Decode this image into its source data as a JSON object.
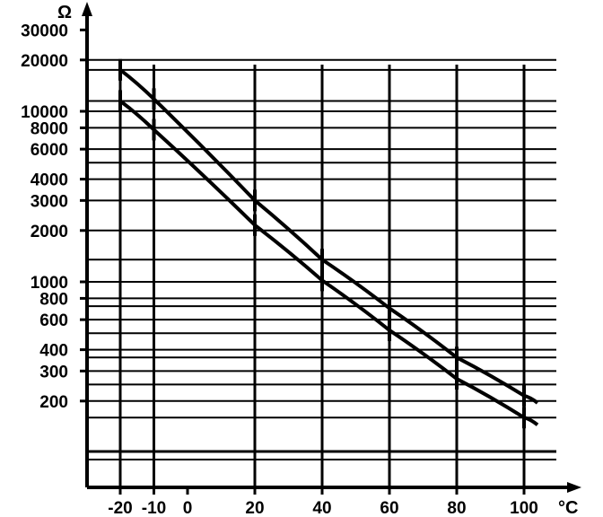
{
  "chart_data": {
    "type": "line",
    "xlabel": "°C",
    "ylabel": "Ω",
    "x_ticks": [
      -20,
      -10,
      0,
      20,
      40,
      60,
      80,
      100
    ],
    "x_tick_labels": [
      "-20",
      "-10",
      "0",
      "20",
      "40",
      "60",
      "80",
      "100"
    ],
    "y_ticks": [
      30000,
      20000,
      10000,
      8000,
      6000,
      4000,
      3000,
      2000,
      1000,
      800,
      600,
      400,
      300,
      200
    ],
    "y_tick_labels": [
      "30000",
      "20000",
      "10000",
      "8000",
      "6000",
      "4000",
      "3000",
      "2000",
      "1000",
      "800",
      "600",
      "400",
      "300",
      "200"
    ],
    "y_scale": "log",
    "xlim": [
      -30,
      110
    ],
    "grid": true,
    "series": [
      {
        "x": [
          -20,
          -10,
          20,
          40,
          60,
          80,
          100,
          104
        ],
        "values": [
          17500,
          11800,
          3000,
          1350,
          700,
          360,
          215,
          195
        ]
      },
      {
        "x": [
          -20,
          -10,
          20,
          40,
          60,
          80,
          100,
          104
        ],
        "values": [
          11500,
          7800,
          2150,
          1020,
          520,
          270,
          160,
          145
        ]
      }
    ]
  }
}
